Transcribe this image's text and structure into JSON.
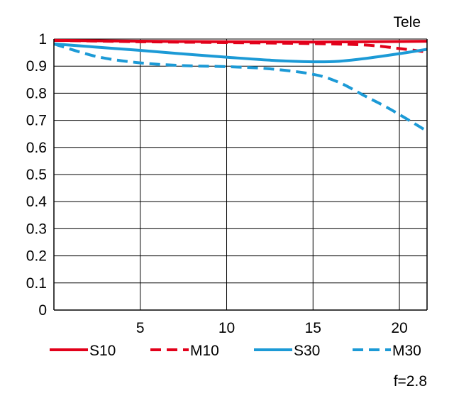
{
  "chart_data": {
    "type": "line",
    "title": "Tele",
    "note": "f=2.8",
    "xlim": [
      0,
      21.6
    ],
    "ylim": [
      0,
      1
    ],
    "x_ticks": [
      5,
      10,
      15,
      20
    ],
    "y_ticks": [
      0,
      0.1,
      0.2,
      0.3,
      0.4,
      0.5,
      0.6,
      0.7,
      0.8,
      0.9,
      1
    ],
    "x_tick_labels": [
      "5",
      "10",
      "15",
      "20"
    ],
    "y_tick_labels": [
      "0",
      "0.1",
      "0.2",
      "0.3",
      "0.4",
      "0.5",
      "0.6",
      "0.7",
      "0.8",
      "0.9",
      "1"
    ],
    "grid": true,
    "legend_position": "bottom",
    "series": [
      {
        "name": "S10",
        "color": "#e2001a",
        "dashed": false,
        "x": [
          0,
          5,
          10,
          15,
          20,
          21.6
        ],
        "y": [
          0.995,
          0.992,
          0.99,
          0.989,
          0.991,
          0.992
        ]
      },
      {
        "name": "M10",
        "color": "#e2001a",
        "dashed": true,
        "x": [
          0,
          5,
          10,
          15,
          18,
          20,
          21.6
        ],
        "y": [
          0.995,
          0.99,
          0.987,
          0.983,
          0.978,
          0.965,
          0.952
        ]
      },
      {
        "name": "S30",
        "color": "#1c9ad6",
        "dashed": false,
        "x": [
          0,
          2.5,
          5,
          7.5,
          10,
          12.5,
          15,
          16.5,
          18,
          20,
          21.6
        ],
        "y": [
          0.982,
          0.97,
          0.958,
          0.945,
          0.933,
          0.922,
          0.916,
          0.918,
          0.928,
          0.946,
          0.962
        ]
      },
      {
        "name": "M30",
        "color": "#1c9ad6",
        "dashed": true,
        "x": [
          0,
          2.5,
          5,
          7.5,
          10,
          12.5,
          15,
          16.5,
          18,
          19.5,
          21.6
        ],
        "y": [
          0.982,
          0.935,
          0.912,
          0.902,
          0.898,
          0.89,
          0.87,
          0.84,
          0.79,
          0.74,
          0.66
        ]
      }
    ]
  }
}
